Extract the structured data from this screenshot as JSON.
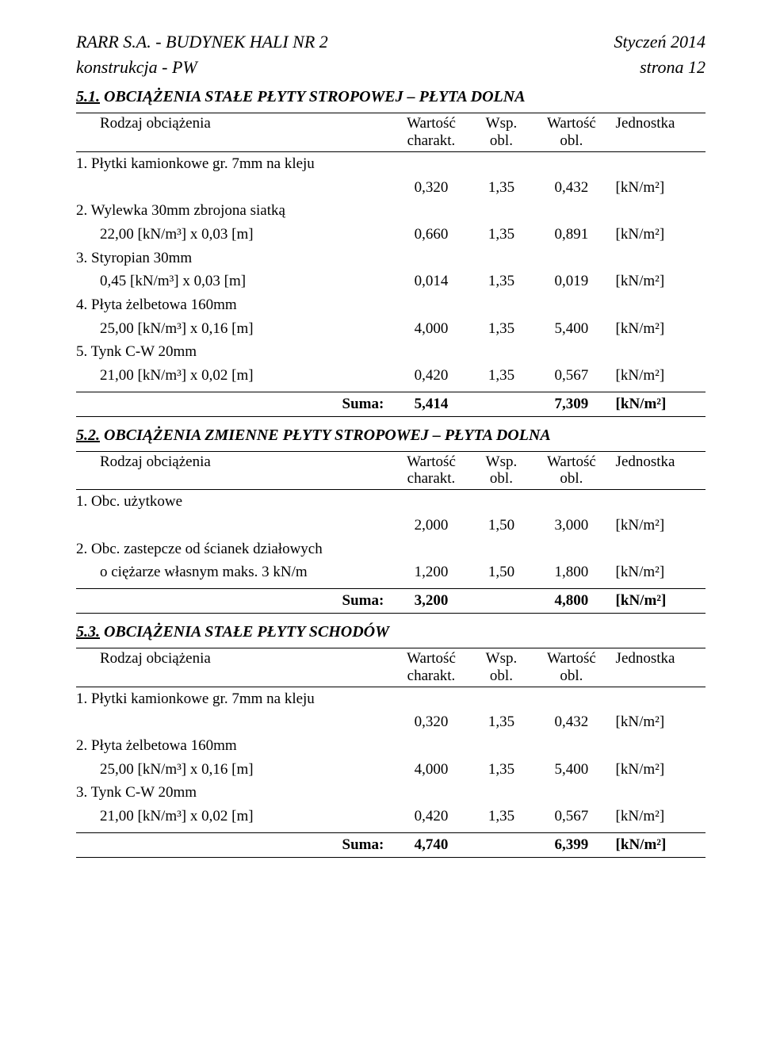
{
  "header": {
    "left1": "RARR S.A. - BUDYNEK HALI NR 2",
    "right1": "Styczeń 2014",
    "left2": "konstrukcja - PW",
    "right2": "strona 12"
  },
  "colhdr": {
    "rodzaj": "Rodzaj obciążenia",
    "w_char1": "Wartość",
    "w_char2": "charakt.",
    "wsp1": "Wsp.",
    "wsp2": "obl.",
    "w_obl1": "Wartość",
    "w_obl2": "obl.",
    "jedn": "Jednostka"
  },
  "s51": {
    "num": "5.1.",
    "title": "OBCIĄŻENIA STAŁE PŁYTY STROPOWEJ – PŁYTA DOLNA",
    "rows": [
      {
        "l1": "1. Płytki kamionkowe gr. 7mm na kleju",
        "l2": "",
        "a": "0,320",
        "b": "1,35",
        "c": "0,432",
        "u": "[kN/m²]"
      },
      {
        "l1": "2. Wylewka 30mm zbrojona siatką",
        "l2": "22,00 [kN/m³] x 0,03 [m]",
        "a": "0,660",
        "b": "1,35",
        "c": "0,891",
        "u": "[kN/m²]"
      },
      {
        "l1": "3. Styropian 30mm",
        "l2": "0,45 [kN/m³] x 0,03 [m]",
        "a": "0,014",
        "b": "1,35",
        "c": "0,019",
        "u": "[kN/m²]"
      },
      {
        "l1": "4. Płyta żelbetowa 160mm",
        "l2": "25,00 [kN/m³] x 0,16 [m]",
        "a": "4,000",
        "b": "1,35",
        "c": "5,400",
        "u": "[kN/m²]"
      },
      {
        "l1": "5. Tynk C-W 20mm",
        "l2": "21,00 [kN/m³] x 0,02 [m]",
        "a": "0,420",
        "b": "1,35",
        "c": "0,567",
        "u": "[kN/m²]"
      }
    ],
    "sum": {
      "label": "Suma:",
      "a": "5,414",
      "c": "7,309",
      "u": "[kN/m²]"
    }
  },
  "s52": {
    "num": "5.2.",
    "title": "OBCIĄŻENIA ZMIENNE PŁYTY STROPOWEJ – PŁYTA DOLNA",
    "rows": [
      {
        "l1": "1. Obc. użytkowe",
        "l2": "",
        "a": "2,000",
        "b": "1,50",
        "c": "3,000",
        "u": "[kN/m²]"
      },
      {
        "l1": "2. Obc. zastepcze od ścianek działowych",
        "l2": "o ciężarze własnym maks. 3 kN/m",
        "a": "1,200",
        "b": "1,50",
        "c": "1,800",
        "u": "[kN/m²]"
      }
    ],
    "sum": {
      "label": "Suma:",
      "a": "3,200",
      "c": "4,800",
      "u": "[kN/m²]"
    }
  },
  "s53": {
    "num": "5.3.",
    "title": "OBCIĄŻENIA STAŁE PŁYTY SCHODÓW",
    "rows": [
      {
        "l1": "1. Płytki kamionkowe gr. 7mm na kleju",
        "l2": "",
        "a": "0,320",
        "b": "1,35",
        "c": "0,432",
        "u": "[kN/m²]"
      },
      {
        "l1": "2. Płyta żelbetowa 160mm",
        "l2": "25,00 [kN/m³] x 0,16 [m]",
        "a": "4,000",
        "b": "1,35",
        "c": "5,400",
        "u": "[kN/m²]"
      },
      {
        "l1": "3. Tynk C-W 20mm",
        "l2": "21,00 [kN/m³] x 0,02 [m]",
        "a": "0,420",
        "b": "1,35",
        "c": "0,567",
        "u": "[kN/m²]"
      }
    ],
    "sum": {
      "label": "Suma:",
      "a": "4,740",
      "c": "6,399",
      "u": "[kN/m²]"
    }
  }
}
